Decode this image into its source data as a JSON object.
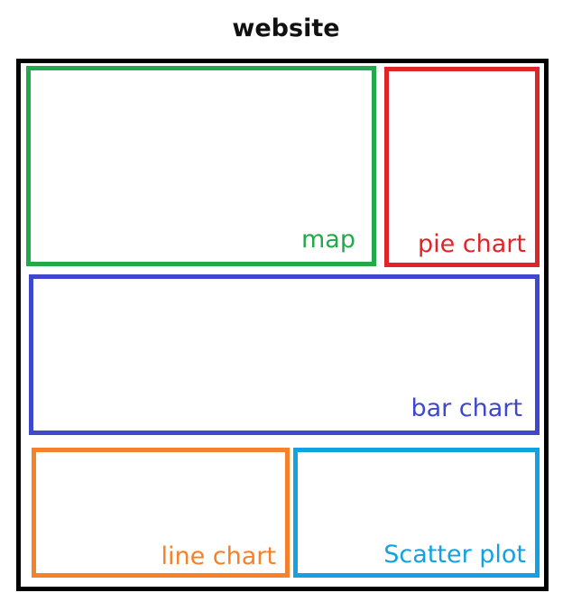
{
  "title": "website",
  "panels": {
    "map": {
      "label": "map",
      "color": "#22a94b"
    },
    "pie": {
      "label": "pie chart",
      "color": "#e02427"
    },
    "bar": {
      "label": "bar chart",
      "color": "#3f48cc"
    },
    "line": {
      "label": "line chart",
      "color": "#f5822a"
    },
    "scatter": {
      "label": "Scatter plot",
      "color": "#13a2e1"
    }
  }
}
